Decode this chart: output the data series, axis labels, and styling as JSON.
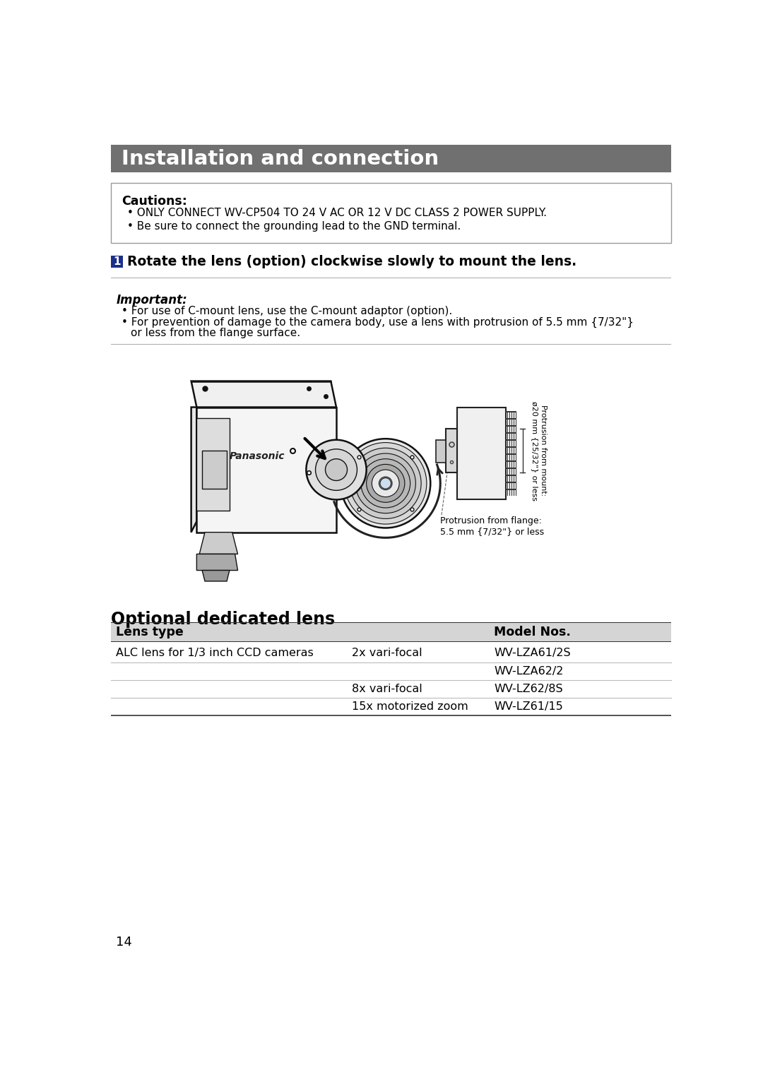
{
  "page_bg": "#ffffff",
  "header_bg": "#707070",
  "header_text": "Installation and connection",
  "header_text_color": "#ffffff",
  "caution_title": "Cautions:",
  "caution_bullet1": "ONLY CONNECT WV-CP504 TO 24 V AC OR 12 V DC CLASS 2 POWER SUPPLY.",
  "caution_bullet2": "Be sure to connect the grounding lead to the GND terminal.",
  "step_number": "1",
  "step_number_bg": "#1c2f8a",
  "step_text": "Rotate the lens (option) clockwise slowly to mount the lens.",
  "important_title": "Important:",
  "important_bullet1": "For use of C-mount lens, use the C-mount adaptor (option).",
  "important_bullet2a": "For prevention of damage to the camera body, use a lens with protrusion of 5.5 mm {7/32\"}",
  "important_bullet2b": "or less from the flange surface.",
  "protrusion_mount": "Protrusion from mount:",
  "protrusion_mount2": "ø20 mm {25/32\"} or less",
  "protrusion_flange1": "Protrusion from flange:",
  "protrusion_flange2": "5.5 mm {7/32\"} or less",
  "section_title": "Optional dedicated lens",
  "table_header_col1": "Lens type",
  "table_header_col2": "Model Nos.",
  "table_rows": [
    [
      "ALC lens for 1/3 inch CCD cameras",
      "2x vari-focal",
      "WV-LZA61/2S"
    ],
    [
      "",
      "",
      "WV-LZA62/2"
    ],
    [
      "",
      "8x vari-focal",
      "WV-LZ62/8S"
    ],
    [
      "",
      "15x motorized zoom",
      "WV-LZ61/15"
    ]
  ],
  "page_number": "14"
}
